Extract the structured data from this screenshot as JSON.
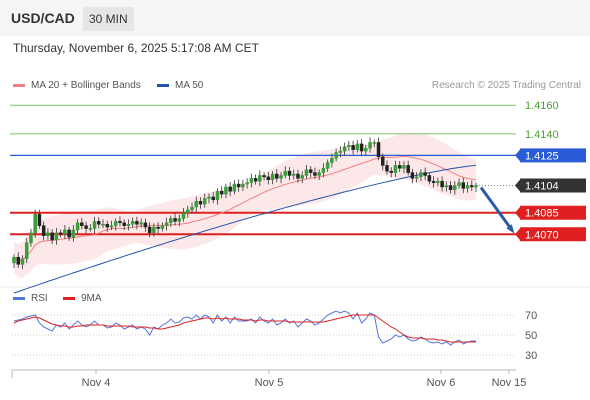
{
  "header": {
    "symbol": "USD/CAD",
    "timeframe": "30 MIN"
  },
  "timestamp": "Thursday, November 6, 2025 5:17:08 AM CET",
  "copyright": "Research © 2025 Trading Central",
  "legend": {
    "ma20": "MA 20 + Bollinger Bands",
    "ma50": "MA 50",
    "rsi": "RSI",
    "rsi_ma": "9MA",
    "colors": {
      "ma20": "#f08080",
      "ma50": "#2255aa",
      "rsi": "#5577dd",
      "rsi_ma": "#dd2222"
    }
  },
  "chart_data": [
    {
      "type": "candlestick",
      "ylim": [
        1.4036,
        1.4172
      ],
      "x_ticks": [
        "Nov 4",
        "Nov 5",
        "Nov 6",
        "Nov 15"
      ],
      "levels": [
        {
          "value": 1.416,
          "label": "1.4160",
          "kind": "resistance",
          "color": "#7fc06a"
        },
        {
          "value": 1.414,
          "label": "1.4140",
          "kind": "resistance",
          "color": "#7fc06a"
        },
        {
          "value": 1.4125,
          "label": "1.4125",
          "kind": "pivot",
          "color": "#2a5bd7"
        },
        {
          "value": 1.4104,
          "label": "1.4104",
          "kind": "last",
          "color": "#333333"
        },
        {
          "value": 1.4085,
          "label": "1.4085",
          "kind": "support",
          "color": "#e02020"
        },
        {
          "value": 1.407,
          "label": "1.4070",
          "kind": "support",
          "color": "#e02020"
        }
      ],
      "last_price": 1.4104,
      "forecast_target": 1.407,
      "closes": [
        1.4054,
        1.4049,
        1.4053,
        1.4064,
        1.4071,
        1.4084,
        1.4076,
        1.4069,
        1.4071,
        1.4066,
        1.4071,
        1.407,
        1.4073,
        1.4068,
        1.4073,
        1.4078,
        1.4076,
        1.4074,
        1.4074,
        1.4079,
        1.4077,
        1.4077,
        1.4075,
        1.4076,
        1.4079,
        1.4078,
        1.4076,
        1.4077,
        1.4079,
        1.4077,
        1.4078,
        1.4075,
        1.4071,
        1.4075,
        1.4074,
        1.4076,
        1.4078,
        1.4081,
        1.4079,
        1.4081,
        1.4085,
        1.4087,
        1.4089,
        1.4093,
        1.4091,
        1.4095,
        1.4096,
        1.4094,
        1.41,
        1.4098,
        1.4103,
        1.41,
        1.4105,
        1.4103,
        1.4105,
        1.4106,
        1.4109,
        1.4107,
        1.4111,
        1.411,
        1.4108,
        1.4112,
        1.4109,
        1.4111,
        1.4114,
        1.4111,
        1.4112,
        1.4109,
        1.4111,
        1.4115,
        1.4113,
        1.4111,
        1.4113,
        1.4116,
        1.412,
        1.4123,
        1.4127,
        1.4128,
        1.4131,
        1.4132,
        1.4129,
        1.4133,
        1.4128,
        1.413,
        1.4134,
        1.4134,
        1.4124,
        1.4118,
        1.4114,
        1.4113,
        1.4118,
        1.4116,
        1.4118,
        1.4113,
        1.4109,
        1.411,
        1.4113,
        1.4111,
        1.4107,
        1.4106,
        1.4107,
        1.4103,
        1.4104,
        1.4101,
        1.4104,
        1.4106,
        1.4102,
        1.4104,
        1.4103,
        1.4104
      ],
      "ma50_start": 1.4029,
      "ma50_end": 1.4118,
      "bollinger_band_width": 0.0018
    },
    {
      "type": "line",
      "title": "RSI",
      "ylim": [
        20,
        80
      ],
      "y_ticks": [
        70,
        50,
        30
      ],
      "series": [
        {
          "name": "RSI",
          "values": [
            64,
            65,
            66,
            68,
            69,
            70,
            62,
            58,
            56,
            54,
            60,
            58,
            62,
            56,
            60,
            64,
            60,
            58,
            60,
            64,
            60,
            60,
            57,
            58,
            62,
            60,
            56,
            58,
            60,
            56,
            58,
            56,
            50,
            58,
            56,
            60,
            62,
            66,
            62,
            63,
            67,
            68,
            66,
            70,
            66,
            70,
            68,
            62,
            70,
            64,
            68,
            62,
            68,
            64,
            64,
            64,
            66,
            62,
            68,
            64,
            62,
            66,
            60,
            62,
            66,
            62,
            64,
            58,
            62,
            66,
            64,
            60,
            62,
            66,
            70,
            72,
            74,
            72,
            74,
            72,
            66,
            72,
            62,
            66,
            72,
            70,
            48,
            42,
            44,
            46,
            50,
            48,
            50,
            46,
            44,
            45,
            48,
            46,
            43,
            42,
            43,
            41,
            43,
            40,
            43,
            45,
            41,
            43,
            44,
            44
          ]
        },
        {
          "name": "9MA",
          "values": [
            62,
            64,
            65,
            66,
            67,
            68,
            67,
            65,
            63,
            61,
            60,
            59,
            59,
            58,
            58,
            59,
            59,
            60,
            60,
            60,
            60,
            60,
            59,
            59,
            59,
            59,
            59,
            59,
            58,
            58,
            58,
            58,
            57,
            57,
            56,
            56,
            57,
            58,
            59,
            60,
            62,
            63,
            64,
            65,
            66,
            67,
            67,
            66,
            67,
            66,
            67,
            66,
            66,
            66,
            65,
            65,
            65,
            64,
            65,
            65,
            64,
            64,
            64,
            64,
            64,
            63,
            63,
            63,
            63,
            63,
            63,
            63,
            63,
            63,
            64,
            65,
            66,
            67,
            68,
            69,
            70,
            70,
            70,
            70,
            70,
            70,
            67,
            64,
            61,
            58,
            56,
            53,
            50,
            48,
            47,
            47,
            47,
            46,
            46,
            46,
            45,
            45,
            44,
            43,
            43,
            43,
            43,
            43,
            43,
            43
          ]
        }
      ]
    }
  ]
}
